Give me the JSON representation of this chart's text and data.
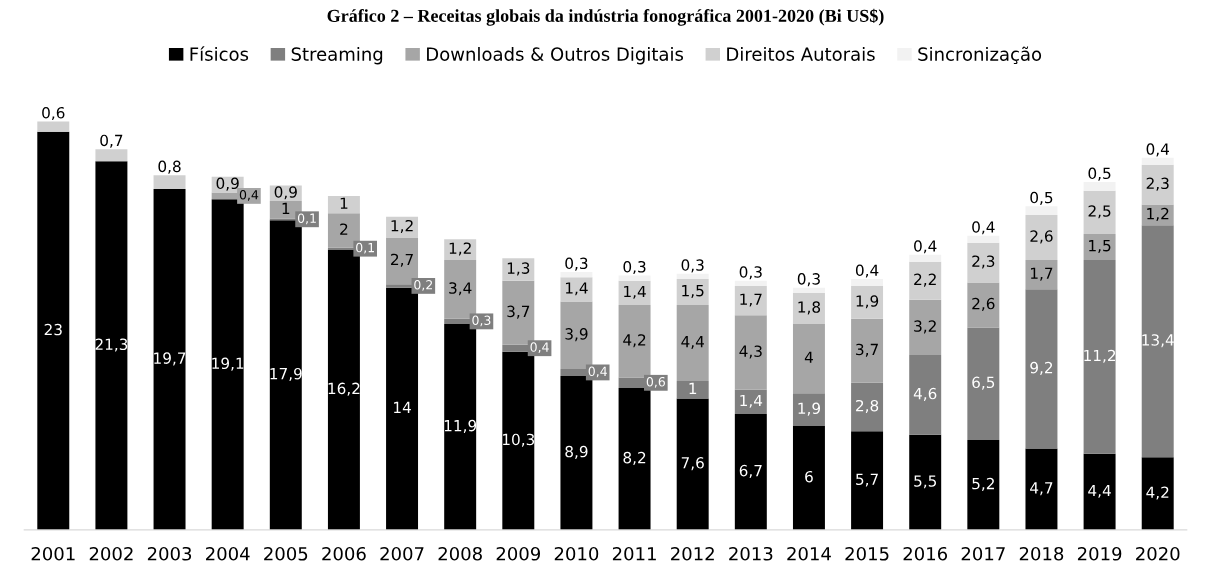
{
  "chart_data": {
    "type": "bar",
    "title": "Gráfico 2 – Receitas globais da indústria fonográfica 2001-2020 (Bi US$)",
    "categories": [
      "2001",
      "2002",
      "2003",
      "2004",
      "2005",
      "2006",
      "2007",
      "2008",
      "2009",
      "2010",
      "2011",
      "2012",
      "2013",
      "2014",
      "2015",
      "2016",
      "2017",
      "2018",
      "2019",
      "2020"
    ],
    "stacked": true,
    "legend": "top",
    "grid": false,
    "series": [
      {
        "name": "Físicos",
        "color": "#000000",
        "values": [
          23,
          21.3,
          19.7,
          19.1,
          17.9,
          16.2,
          14,
          11.9,
          10.3,
          8.9,
          8.2,
          7.6,
          6.7,
          6,
          5.7,
          5.5,
          5.2,
          4.7,
          4.4,
          4.2
        ],
        "value_labels": [
          "23",
          "21,3",
          "19,7",
          "19,1",
          "17,9",
          "16,2",
          "14",
          "11,9",
          "10,3",
          "8,9",
          "8,2",
          "7,6",
          "6,7",
          "6",
          "5,7",
          "5,5",
          "5,2",
          "4,7",
          "4,4",
          "4,2"
        ]
      },
      {
        "name": "Streaming",
        "color": "#7f7f7f",
        "values": [
          null,
          null,
          null,
          null,
          0.1,
          0.1,
          0.2,
          0.3,
          0.4,
          0.4,
          0.6,
          1,
          1.4,
          1.9,
          2.8,
          4.6,
          6.5,
          9.2,
          11.2,
          13.4
        ],
        "value_labels": [
          null,
          null,
          null,
          null,
          "0,1",
          "0,1",
          "0,2",
          "0,3",
          "0,4",
          "0,4",
          "0,6",
          "1",
          "1,4",
          "1,9",
          "2,8",
          "4,6",
          "6,5",
          "9,2",
          "11,2",
          "13,4"
        ]
      },
      {
        "name": "Downloads & Outros Digitais",
        "color": "#a6a6a6",
        "values": [
          null,
          null,
          null,
          0.4,
          1,
          2,
          2.7,
          3.4,
          3.7,
          3.9,
          4.2,
          4.4,
          4.3,
          4,
          3.7,
          3.2,
          2.6,
          1.7,
          1.5,
          1.2
        ],
        "value_labels": [
          null,
          null,
          null,
          "0,4",
          "1",
          "2",
          "2,7",
          "3,4",
          "3,7",
          "3,9",
          "4,2",
          "4,4",
          "4,3",
          "4",
          "3,7",
          "3,2",
          "2,6",
          "1,7",
          "1,5",
          "1,2"
        ]
      },
      {
        "name": "Direitos Autorais",
        "color": "#d0d0d0",
        "values": [
          0.6,
          0.7,
          0.8,
          0.9,
          0.9,
          1,
          1.2,
          1.2,
          1.3,
          1.4,
          1.4,
          1.5,
          1.7,
          1.8,
          1.9,
          2.2,
          2.3,
          2.6,
          2.5,
          2.3
        ],
        "value_labels": [
          "0,6",
          "0,7",
          "0,8",
          "0,9",
          "0,9",
          "1",
          "1,2",
          "1,2",
          "1,3",
          "1,4",
          "1,4",
          "1,5",
          "1,7",
          "1,8",
          "1,9",
          "2,2",
          "2,3",
          "2,6",
          "2,5",
          "2,3"
        ]
      },
      {
        "name": "Sincronização",
        "color": "#f2f2f2",
        "values": [
          null,
          null,
          null,
          null,
          null,
          null,
          null,
          null,
          null,
          0.3,
          0.3,
          0.3,
          0.3,
          0.3,
          0.4,
          0.4,
          0.4,
          0.5,
          0.5,
          0.4
        ],
        "value_labels": [
          null,
          null,
          null,
          null,
          null,
          null,
          null,
          null,
          null,
          "0,3",
          "0,3",
          "0,3",
          "0,3",
          "0,3",
          "0,4",
          "0,4",
          "0,4",
          "0,5",
          "0,5",
          "0,4"
        ]
      }
    ]
  }
}
